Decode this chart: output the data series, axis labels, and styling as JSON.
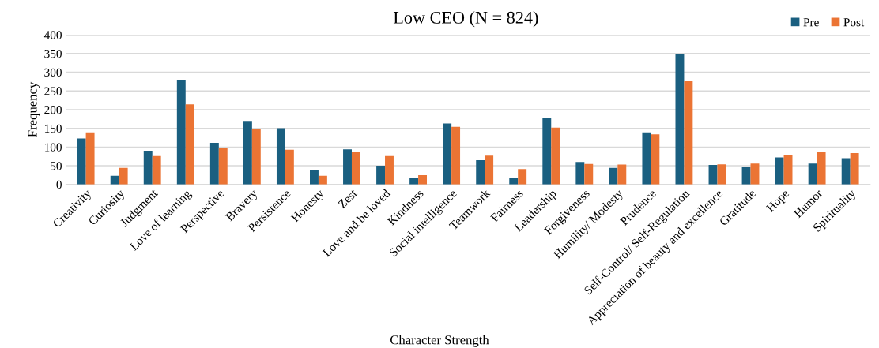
{
  "chart_data": {
    "type": "bar",
    "title": "Low CEO (N = 824)",
    "xlabel": "Character Strength",
    "ylabel": "Frequency",
    "categories": [
      "Creativity",
      "Curiosity",
      "Judgment",
      "Love of learning",
      "Perspective",
      "Bravery",
      "Persistence",
      "Honesty",
      "Zest",
      "Love and be loved",
      "Kindness",
      "Social intelligence",
      "Teamwork",
      "Fairness",
      "Leadership",
      "Forgiveness",
      "Humility/ Modesty",
      "Prudence",
      "Self-Control/ Self-Regulation",
      "Appreciation of beauty and excellence",
      "Gratitude",
      "Hope",
      "Humor",
      "Spirituality"
    ],
    "series": [
      {
        "name": "Pre",
        "color": "#1a5f80",
        "values": [
          123,
          23,
          90,
          280,
          111,
          170,
          150,
          38,
          94,
          50,
          18,
          163,
          65,
          17,
          178,
          60,
          44,
          139,
          348,
          52,
          48,
          72,
          56,
          70
        ]
      },
      {
        "name": "Post",
        "color": "#eb7434",
        "values": [
          139,
          44,
          76,
          214,
          97,
          147,
          93,
          23,
          86,
          76,
          25,
          154,
          77,
          41,
          152,
          55,
          53,
          134,
          276,
          54,
          56,
          78,
          88,
          84
        ]
      }
    ],
    "ylim": [
      0,
      400
    ],
    "yticks": [
      0,
      50,
      100,
      150,
      200,
      250,
      300,
      350,
      400
    ],
    "grid": "y",
    "legend": "top right"
  }
}
